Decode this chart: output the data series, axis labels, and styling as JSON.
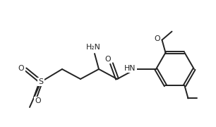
{
  "bg": "#ffffff",
  "lc": "#222222",
  "lw": 1.4,
  "fs": 7.8,
  "dpi": 100,
  "figw": 3.06,
  "figh": 1.8,
  "xlim": [
    0,
    306
  ],
  "ylim": [
    0,
    180
  ],
  "atoms": {
    "H2N": "H₂N",
    "O_carbonyl": "O",
    "HN": "HN",
    "O_methoxy": "O",
    "S": "S",
    "O_s1": "O",
    "O_s2": "O"
  }
}
